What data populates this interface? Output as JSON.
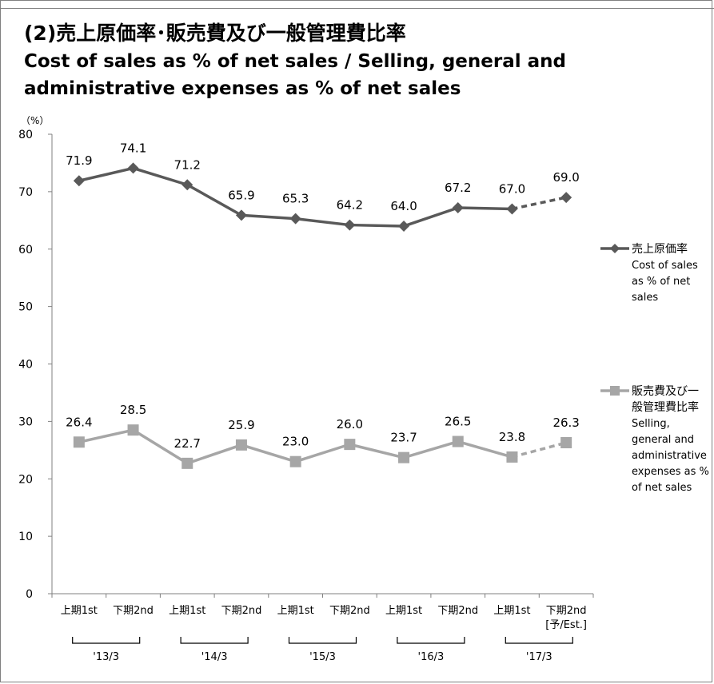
{
  "title_jp": "(2)売上原価率･販売費及び一般管理費比率",
  "title_en": "Cost of sales as % of net sales / Selling, general and administrative expenses as % of net sales",
  "chart_data": {
    "type": "line",
    "unit_label": "（%）",
    "ylim": [
      0,
      80
    ],
    "yticks": [
      0,
      10,
      20,
      30,
      40,
      50,
      60,
      70,
      80
    ],
    "grid": false,
    "categories": [
      "上期1st",
      "下期2nd",
      "上期1st",
      "下期2nd",
      "上期1st",
      "下期2nd",
      "上期1st",
      "下期2nd",
      "上期1st",
      "下期2nd"
    ],
    "estimate_note": "[予/Est.]",
    "year_groups": [
      "'13/3",
      "'14/3",
      "'15/3",
      "'16/3",
      "'17/3"
    ],
    "legend_position": "right",
    "series": [
      {
        "name_jp": "売上原価率",
        "name_en": "Cost of sales as % of net sales",
        "marker": "diamond",
        "color": "#595959",
        "values": [
          71.9,
          74.1,
          71.2,
          65.9,
          65.3,
          64.2,
          64.0,
          67.2,
          67.0,
          69.0
        ],
        "labels": [
          "71.9",
          "74.1",
          "71.2",
          "65.9",
          "65.3",
          "64.2",
          "64.0",
          "67.2",
          "67.0",
          "69.0"
        ],
        "last_segment_dashed": true
      },
      {
        "name_jp": "販売費及び一般管理費比率",
        "name_en": "Selling, general and administrative expenses as % of net sales",
        "marker": "square",
        "color": "#a6a6a6",
        "values": [
          26.4,
          28.5,
          22.7,
          25.9,
          23.0,
          26.0,
          23.7,
          26.5,
          23.8,
          26.3
        ],
        "labels": [
          "26.4",
          "28.5",
          "22.7",
          "25.9",
          "23.0",
          "26.0",
          "23.7",
          "26.5",
          "23.8",
          "26.3"
        ],
        "last_segment_dashed": true
      }
    ]
  },
  "legend": {
    "s1_lines": [
      "売上原価率",
      "Cost of sales",
      "as % of net",
      "sales"
    ],
    "s2_lines": [
      "販売費及び一",
      "般管理費比率",
      "Selling,",
      "general and",
      "administrative",
      "expenses as %",
      "of net sales"
    ]
  }
}
